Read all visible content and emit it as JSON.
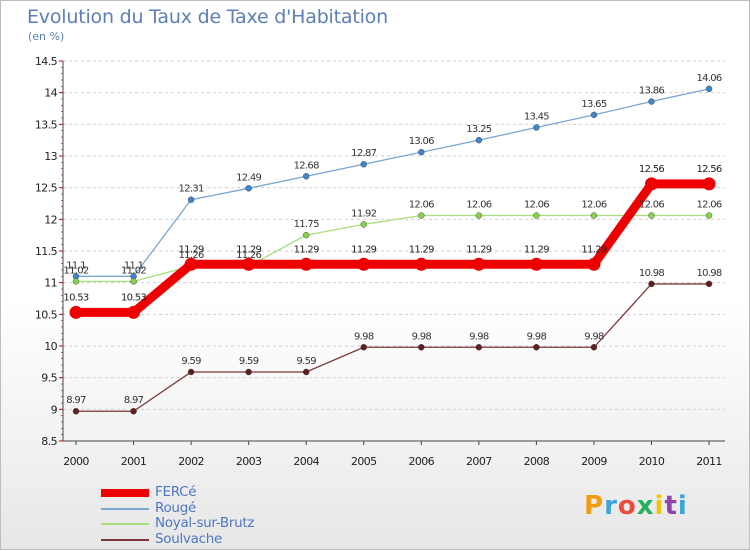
{
  "title": "Evolution du Taux de Taxe d'Habitation",
  "unit_label": "(en %)",
  "logo": {
    "text": "Proxiti",
    "colors": [
      "#f39c12",
      "#3ba4dc",
      "#e84c3d",
      "#27ae60",
      "#f1c40f",
      "#8e44ad",
      "#3ba4dc"
    ]
  },
  "chart_data": {
    "type": "line",
    "title": "Evolution du Taux de Taxe d'Habitation",
    "ylabel": "(en %)",
    "xlabel": "",
    "x": [
      "2000",
      "2001",
      "2002",
      "2003",
      "2004",
      "2005",
      "2006",
      "2007",
      "2008",
      "2009",
      "2010",
      "2011"
    ],
    "ylim": [
      8.5,
      14.5
    ],
    "yticks": [
      "8.5",
      "9",
      "9.5",
      "10",
      "10.5",
      "11",
      "11.5",
      "12",
      "12.5",
      "13",
      "13.5",
      "14",
      "14.5"
    ],
    "grid": "horizontal dashed",
    "legend_position": "bottom-left",
    "series": [
      {
        "name": "FERCé",
        "color": "#ee0000",
        "emphasis": true,
        "values": [
          10.53,
          10.53,
          11.29,
          11.29,
          11.29,
          11.29,
          11.29,
          11.29,
          11.29,
          11.29,
          12.56,
          12.56
        ],
        "labels": [
          "10.53",
          "10.53",
          "11.29",
          "11.29",
          "11.29",
          "11.29",
          "11.29",
          "11.29",
          "11.29",
          "11.29",
          "12.56",
          "12.56"
        ]
      },
      {
        "name": "Rougé",
        "color": "#7aa6d2",
        "marker": "#3f86c9",
        "values": [
          11.1,
          11.1,
          12.31,
          12.49,
          12.68,
          12.87,
          13.06,
          13.25,
          13.45,
          13.65,
          13.86,
          14.06
        ],
        "labels": [
          "11.1",
          "11.1",
          "12.31",
          "12.49",
          "12.68",
          "12.87",
          "13.06",
          "13.25",
          "13.45",
          "13.65",
          "13.86",
          "14.06"
        ]
      },
      {
        "name": "Noyal-sur-Brutz",
        "color": "#a6df7b",
        "marker": "#86d14a",
        "values": [
          11.02,
          11.02,
          11.26,
          11.26,
          11.75,
          11.92,
          12.06,
          12.06,
          12.06,
          12.06,
          12.06,
          12.06
        ],
        "labels": [
          "11.02",
          "11.02",
          "11.26",
          "11.26",
          "11.75",
          "11.92",
          "12.06",
          "12.06",
          "12.06",
          "12.06",
          "12.06",
          "12.06"
        ]
      },
      {
        "name": "Soulvache",
        "color": "#7b3737",
        "marker": "#5e1f1f",
        "values": [
          8.97,
          8.97,
          9.59,
          9.59,
          9.59,
          9.98,
          9.98,
          9.98,
          9.98,
          9.98,
          10.98,
          10.98
        ],
        "labels": [
          "8.97",
          "8.97",
          "9.59",
          "9.59",
          "9.59",
          "9.98",
          "9.98",
          "9.98",
          "9.98",
          "9.98",
          "10.98",
          "10.98"
        ]
      }
    ]
  }
}
